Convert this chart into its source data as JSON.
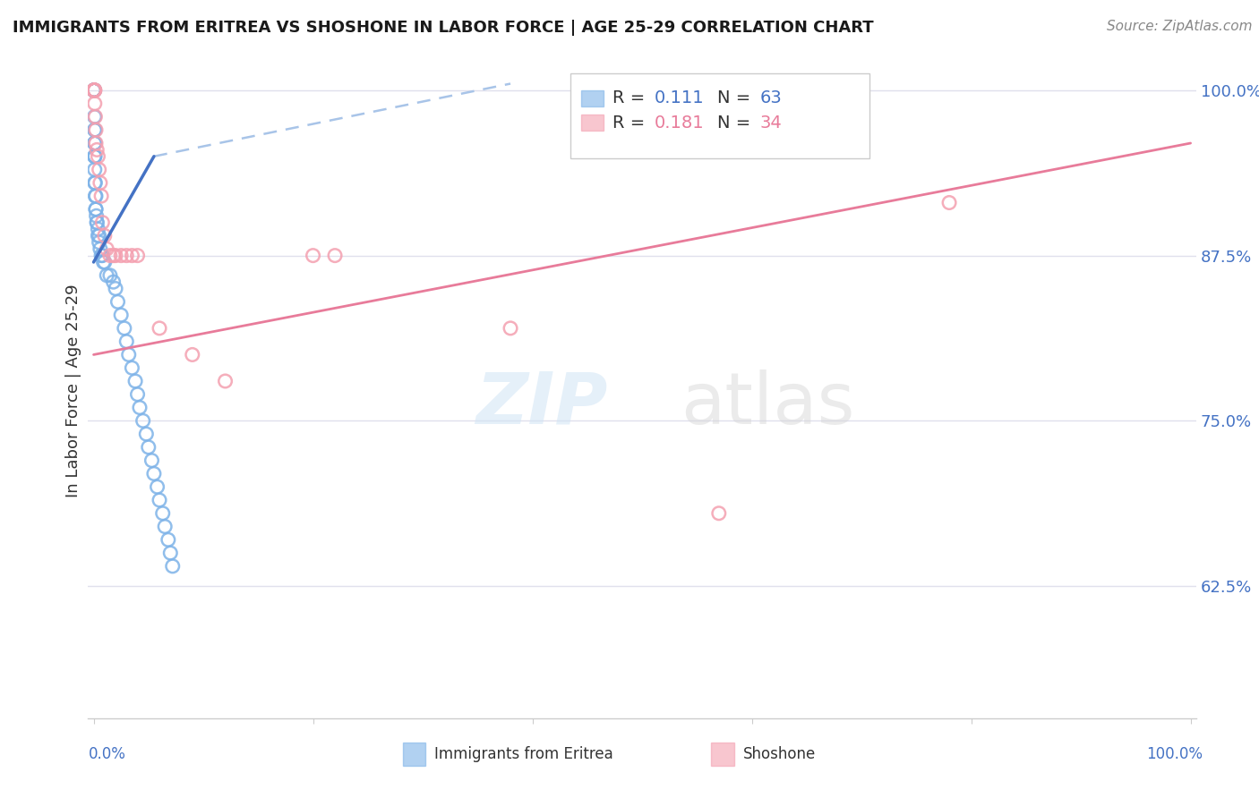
{
  "title": "IMMIGRANTS FROM ERITREA VS SHOSHONE IN LABOR FORCE | AGE 25-29 CORRELATION CHART",
  "source": "Source: ZipAtlas.com",
  "ylabel": "In Labor Force | Age 25-29",
  "watermark_zip": "ZIP",
  "watermark_atlas": "atlas",
  "legend_eritrea_R": "0.111",
  "legend_eritrea_N": "63",
  "legend_shoshone_R": "0.181",
  "legend_shoshone_N": "34",
  "blue_scatter_color": "#7EB3E8",
  "pink_scatter_color": "#F4A0B0",
  "blue_line_color": "#4472C4",
  "pink_line_color": "#E87B9A",
  "dashed_line_color": "#A8C4E8",
  "right_axis_color": "#4472C4",
  "background_color": "#FFFFFF",
  "grid_color": "#E0E0EC",
  "y_tick_positions": [
    0.625,
    0.75,
    0.875,
    1.0
  ],
  "y_tick_labels": [
    "62.5%",
    "75.0%",
    "87.5%",
    "100.0%"
  ],
  "ylim_min": 0.525,
  "ylim_max": 1.02,
  "xlim_min": -0.005,
  "xlim_max": 1.005,
  "eritrea_x": [
    0.0003,
    0.0003,
    0.0003,
    0.0003,
    0.0005,
    0.0005,
    0.0005,
    0.0005,
    0.0008,
    0.0008,
    0.0008,
    0.001,
    0.001,
    0.001,
    0.001,
    0.001,
    0.001,
    0.001,
    0.001,
    0.001,
    0.001,
    0.0015,
    0.0015,
    0.002,
    0.002,
    0.002,
    0.0025,
    0.003,
    0.003,
    0.004,
    0.004,
    0.005,
    0.005,
    0.006,
    0.007,
    0.008,
    0.009,
    0.01,
    0.012,
    0.015,
    0.018,
    0.02,
    0.022,
    0.025,
    0.028,
    0.03,
    0.032,
    0.035,
    0.038,
    0.04,
    0.042,
    0.045,
    0.048,
    0.05,
    0.053,
    0.055,
    0.058,
    0.06,
    0.063,
    0.065,
    0.068,
    0.07,
    0.072
  ],
  "eritrea_y": [
    1.0,
    1.0,
    1.0,
    1.0,
    1.0,
    1.0,
    1.0,
    1.0,
    1.0,
    1.0,
    0.98,
    0.97,
    0.97,
    0.96,
    0.96,
    0.96,
    0.95,
    0.95,
    0.95,
    0.94,
    0.93,
    0.93,
    0.92,
    0.92,
    0.91,
    0.91,
    0.905,
    0.9,
    0.9,
    0.895,
    0.89,
    0.89,
    0.885,
    0.88,
    0.875,
    0.875,
    0.87,
    0.87,
    0.86,
    0.86,
    0.855,
    0.85,
    0.84,
    0.83,
    0.82,
    0.81,
    0.8,
    0.79,
    0.78,
    0.77,
    0.76,
    0.75,
    0.74,
    0.73,
    0.72,
    0.71,
    0.7,
    0.69,
    0.68,
    0.67,
    0.66,
    0.65,
    0.64
  ],
  "shoshone_x": [
    0.0003,
    0.0003,
    0.0005,
    0.0005,
    0.0008,
    0.001,
    0.001,
    0.001,
    0.0015,
    0.002,
    0.002,
    0.003,
    0.004,
    0.005,
    0.006,
    0.007,
    0.008,
    0.01,
    0.012,
    0.015,
    0.018,
    0.02,
    0.025,
    0.03,
    0.035,
    0.04,
    0.06,
    0.09,
    0.12,
    0.2,
    0.22,
    0.38,
    0.57,
    0.78
  ],
  "shoshone_y": [
    1.0,
    1.0,
    1.0,
    1.0,
    1.0,
    1.0,
    1.0,
    0.99,
    0.98,
    0.97,
    0.96,
    0.955,
    0.95,
    0.94,
    0.93,
    0.92,
    0.9,
    0.89,
    0.88,
    0.875,
    0.875,
    0.875,
    0.875,
    0.875,
    0.875,
    0.875,
    0.82,
    0.8,
    0.78,
    0.875,
    0.875,
    0.82,
    0.68,
    0.915
  ],
  "blue_trend_x0": 0.0,
  "blue_trend_y0": 0.87,
  "blue_trend_x1": 0.055,
  "blue_trend_y1": 0.95,
  "dash_trend_x0": 0.055,
  "dash_trend_y0": 0.95,
  "dash_trend_x1": 0.38,
  "dash_trend_y1": 1.005,
  "pink_trend_x0": 0.0,
  "pink_trend_y0": 0.8,
  "pink_trend_x1": 1.0,
  "pink_trend_y1": 0.96
}
